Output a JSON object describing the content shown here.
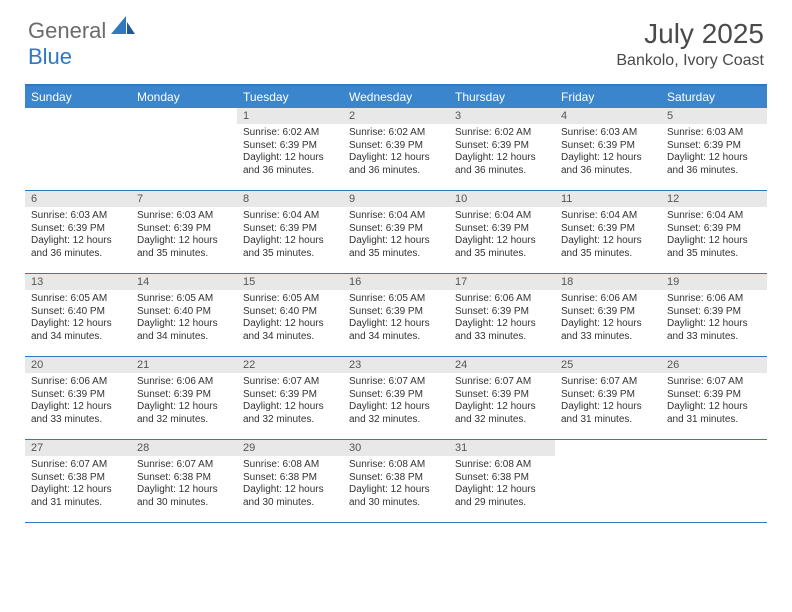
{
  "logo": {
    "part1": "General",
    "part2": "Blue"
  },
  "title": "July 2025",
  "location": "Bankolo, Ivory Coast",
  "colors": {
    "accent": "#3b85cc",
    "border": "#2f78c2",
    "daynum_bg": "#e8e8e8",
    "text": "#333333",
    "logo_gray": "#6b6b6b"
  },
  "day_headers": [
    "Sunday",
    "Monday",
    "Tuesday",
    "Wednesday",
    "Thursday",
    "Friday",
    "Saturday"
  ],
  "weeks": [
    [
      null,
      null,
      {
        "n": "1",
        "sr": "6:02 AM",
        "ss": "6:39 PM",
        "dl": "12 hours and 36 minutes."
      },
      {
        "n": "2",
        "sr": "6:02 AM",
        "ss": "6:39 PM",
        "dl": "12 hours and 36 minutes."
      },
      {
        "n": "3",
        "sr": "6:02 AM",
        "ss": "6:39 PM",
        "dl": "12 hours and 36 minutes."
      },
      {
        "n": "4",
        "sr": "6:03 AM",
        "ss": "6:39 PM",
        "dl": "12 hours and 36 minutes."
      },
      {
        "n": "5",
        "sr": "6:03 AM",
        "ss": "6:39 PM",
        "dl": "12 hours and 36 minutes."
      }
    ],
    [
      {
        "n": "6",
        "sr": "6:03 AM",
        "ss": "6:39 PM",
        "dl": "12 hours and 36 minutes."
      },
      {
        "n": "7",
        "sr": "6:03 AM",
        "ss": "6:39 PM",
        "dl": "12 hours and 35 minutes."
      },
      {
        "n": "8",
        "sr": "6:04 AM",
        "ss": "6:39 PM",
        "dl": "12 hours and 35 minutes."
      },
      {
        "n": "9",
        "sr": "6:04 AM",
        "ss": "6:39 PM",
        "dl": "12 hours and 35 minutes."
      },
      {
        "n": "10",
        "sr": "6:04 AM",
        "ss": "6:39 PM",
        "dl": "12 hours and 35 minutes."
      },
      {
        "n": "11",
        "sr": "6:04 AM",
        "ss": "6:39 PM",
        "dl": "12 hours and 35 minutes."
      },
      {
        "n": "12",
        "sr": "6:04 AM",
        "ss": "6:39 PM",
        "dl": "12 hours and 35 minutes."
      }
    ],
    [
      {
        "n": "13",
        "sr": "6:05 AM",
        "ss": "6:40 PM",
        "dl": "12 hours and 34 minutes."
      },
      {
        "n": "14",
        "sr": "6:05 AM",
        "ss": "6:40 PM",
        "dl": "12 hours and 34 minutes."
      },
      {
        "n": "15",
        "sr": "6:05 AM",
        "ss": "6:40 PM",
        "dl": "12 hours and 34 minutes."
      },
      {
        "n": "16",
        "sr": "6:05 AM",
        "ss": "6:39 PM",
        "dl": "12 hours and 34 minutes."
      },
      {
        "n": "17",
        "sr": "6:06 AM",
        "ss": "6:39 PM",
        "dl": "12 hours and 33 minutes."
      },
      {
        "n": "18",
        "sr": "6:06 AM",
        "ss": "6:39 PM",
        "dl": "12 hours and 33 minutes."
      },
      {
        "n": "19",
        "sr": "6:06 AM",
        "ss": "6:39 PM",
        "dl": "12 hours and 33 minutes."
      }
    ],
    [
      {
        "n": "20",
        "sr": "6:06 AM",
        "ss": "6:39 PM",
        "dl": "12 hours and 33 minutes."
      },
      {
        "n": "21",
        "sr": "6:06 AM",
        "ss": "6:39 PM",
        "dl": "12 hours and 32 minutes."
      },
      {
        "n": "22",
        "sr": "6:07 AM",
        "ss": "6:39 PM",
        "dl": "12 hours and 32 minutes."
      },
      {
        "n": "23",
        "sr": "6:07 AM",
        "ss": "6:39 PM",
        "dl": "12 hours and 32 minutes."
      },
      {
        "n": "24",
        "sr": "6:07 AM",
        "ss": "6:39 PM",
        "dl": "12 hours and 32 minutes."
      },
      {
        "n": "25",
        "sr": "6:07 AM",
        "ss": "6:39 PM",
        "dl": "12 hours and 31 minutes."
      },
      {
        "n": "26",
        "sr": "6:07 AM",
        "ss": "6:39 PM",
        "dl": "12 hours and 31 minutes."
      }
    ],
    [
      {
        "n": "27",
        "sr": "6:07 AM",
        "ss": "6:38 PM",
        "dl": "12 hours and 31 minutes."
      },
      {
        "n": "28",
        "sr": "6:07 AM",
        "ss": "6:38 PM",
        "dl": "12 hours and 30 minutes."
      },
      {
        "n": "29",
        "sr": "6:08 AM",
        "ss": "6:38 PM",
        "dl": "12 hours and 30 minutes."
      },
      {
        "n": "30",
        "sr": "6:08 AM",
        "ss": "6:38 PM",
        "dl": "12 hours and 30 minutes."
      },
      {
        "n": "31",
        "sr": "6:08 AM",
        "ss": "6:38 PM",
        "dl": "12 hours and 29 minutes."
      },
      null,
      null
    ]
  ],
  "labels": {
    "sunrise": "Sunrise:",
    "sunset": "Sunset:",
    "daylight": "Daylight:"
  }
}
